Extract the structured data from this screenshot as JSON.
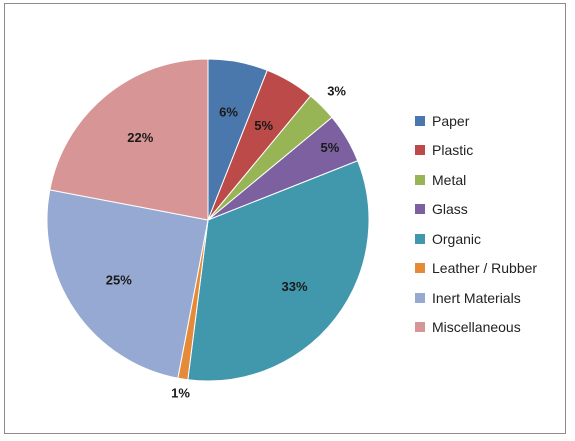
{
  "chart_data": {
    "type": "pie",
    "title": "",
    "legend_position": "right",
    "start_angle_deg": 0,
    "direction": "clockwise",
    "slices": [
      {
        "name": "Paper",
        "value": 6,
        "label": "6%",
        "color": "#4a78ad"
      },
      {
        "name": "Plastic",
        "value": 5,
        "label": "5%",
        "color": "#bc4a48"
      },
      {
        "name": "Metal",
        "value": 3,
        "label": "3%",
        "color": "#98b556"
      },
      {
        "name": "Glass",
        "value": 5,
        "label": "5%",
        "color": "#7c60a0"
      },
      {
        "name": "Organic",
        "value": 33,
        "label": "33%",
        "color": "#4198ad"
      },
      {
        "name": "Leather / Rubber",
        "value": 1,
        "label": "1%",
        "color": "#e48a39"
      },
      {
        "name": "Inert Materials",
        "value": 25,
        "label": "25%",
        "color": "#96a9d2"
      },
      {
        "name": "Miscellaneous",
        "value": 22,
        "label": "22%",
        "color": "#d79695"
      }
    ]
  }
}
